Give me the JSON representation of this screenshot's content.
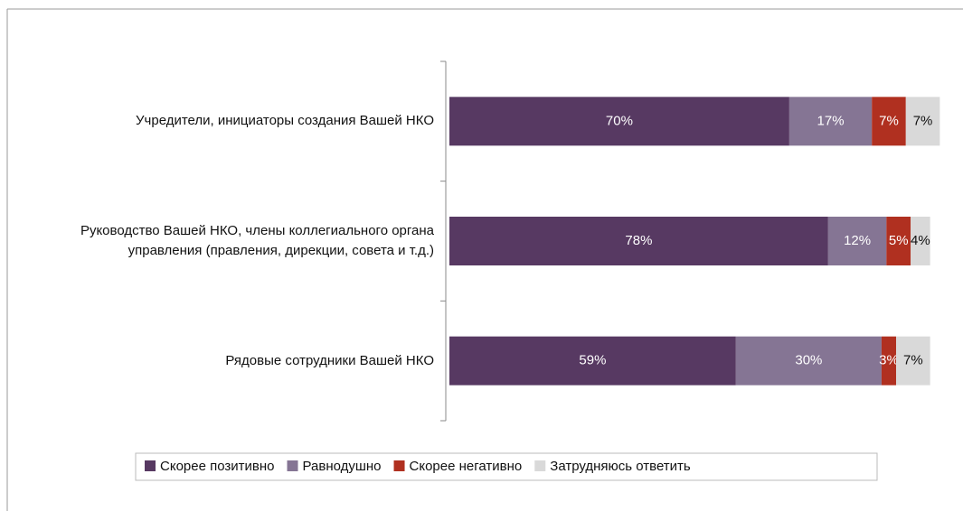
{
  "chart_data": {
    "type": "stacked_bar_horizontal",
    "categories": [
      "Учредители, инициаторы создания Вашей НКО",
      "Руководство Вашей НКО, члены коллегиального органа управления (правления, дирекции, совета и т.д.)",
      "Рядовые сотрудники Вашей НКО"
    ],
    "series": [
      {
        "name": "Скорее позитивно",
        "color": "#573962",
        "values": [
          70,
          78,
          59
        ],
        "value_labels": [
          "70%",
          "78%",
          "59%"
        ]
      },
      {
        "name": "Равнодушно",
        "color": "#857594",
        "values": [
          17,
          12,
          30
        ],
        "value_labels": [
          "17%",
          "12%",
          "30%"
        ]
      },
      {
        "name": "Скорее негативно",
        "color": "#b03020",
        "values": [
          7,
          5,
          3
        ],
        "value_labels": [
          "7%",
          "5%",
          "3%"
        ]
      },
      {
        "name": "Затрудняюсь ответить",
        "color": "#d9d9d9",
        "values": [
          7,
          4,
          7
        ],
        "value_labels": [
          "7%",
          "4%",
          "7%"
        ]
      }
    ],
    "xlim": [
      0,
      100
    ],
    "legend": "bottom"
  }
}
